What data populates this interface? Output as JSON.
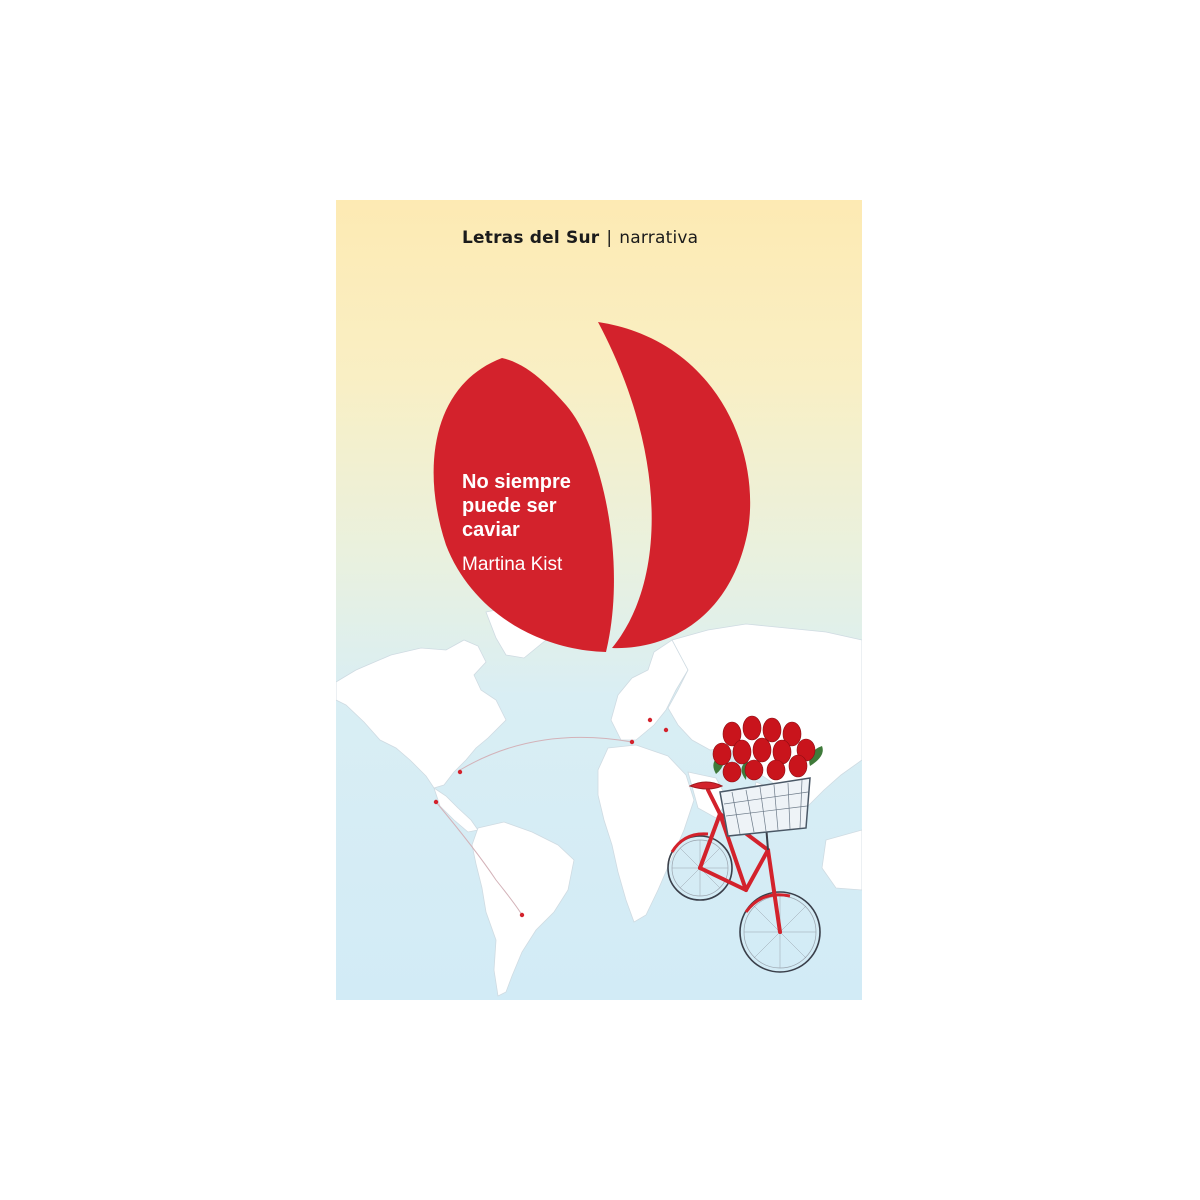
{
  "cover": {
    "series_brand": "Letras del Sur",
    "series_separator": "|",
    "series_genre": "narrativa",
    "title_lines": [
      "No siempre",
      "puede ser",
      "caviar"
    ],
    "author": "Martina Kist",
    "colors": {
      "accent": "#d3222c",
      "sky_top": "#fdeab3",
      "sky_bottom": "#d2ebf6",
      "map": "#ffffff"
    },
    "icons": [
      "logo-emblem-icon",
      "world-map-icon",
      "bicycle-icon",
      "tulip-basket-icon"
    ]
  }
}
